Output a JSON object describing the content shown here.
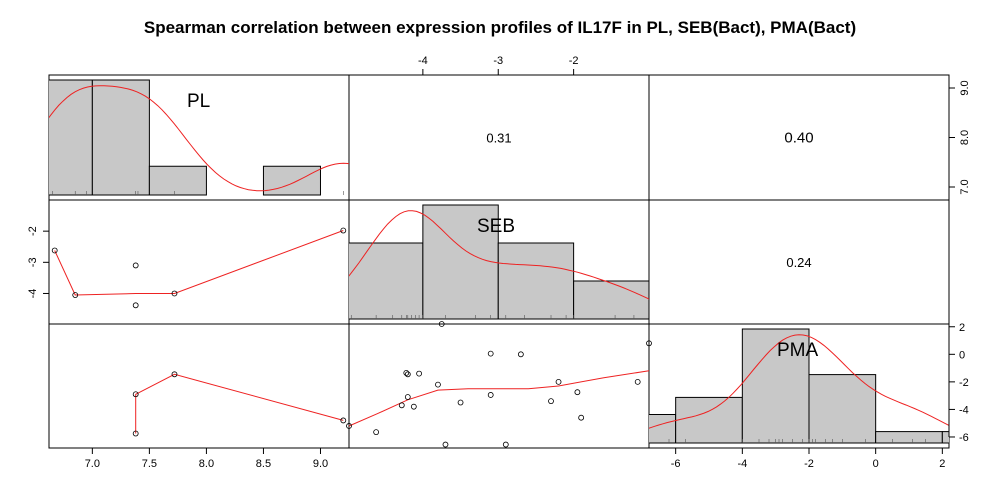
{
  "title": "Spearman correlation between expression profiles of IL17F in PL, SEB(Bact), PMA(Bact)",
  "chart_data": {
    "type": "scatter-matrix",
    "variables": [
      "PL",
      "SEB",
      "PMA"
    ],
    "axes": {
      "PL": {
        "range": [
          6.62,
          9.25
        ],
        "ticks": [
          7.0,
          7.5,
          8.0,
          8.5,
          9.0
        ],
        "tick_labels": [
          "7.0",
          "7.5",
          "8.0",
          "8.5",
          "9.0"
        ],
        "right_ticks": [
          7.0,
          8.0,
          9.0
        ],
        "right_tick_labels": [
          "7.0",
          "8.0",
          "9.0"
        ]
      },
      "SEB": {
        "range": [
          -4.98,
          -1.0
        ],
        "ticks": [
          -4,
          -3,
          -2
        ],
        "tick_labels": [
          "-4",
          "-3",
          "-2"
        ]
      },
      "PMA": {
        "range": [
          -6.8,
          2.2
        ],
        "ticks": [
          -6,
          -4,
          -2,
          0,
          2
        ],
        "tick_labels": [
          "-6",
          "-4",
          "-2",
          "0",
          "2"
        ]
      }
    },
    "histograms": {
      "PL": {
        "breaks": [
          6.5,
          7.0,
          7.5,
          8.0,
          8.5,
          9.0,
          9.5
        ],
        "counts": [
          2,
          2,
          0.5,
          0,
          0.5,
          0
        ],
        "rug": [
          6.65,
          6.85,
          6.95,
          7.38,
          7.4,
          7.72,
          9.2
        ]
      },
      "SEB": {
        "breaks": [
          -5,
          -4,
          -3,
          -2,
          -1
        ],
        "counts": [
          2.4,
          3.6,
          2.4,
          1.2
        ],
        "rug": [
          -4.95,
          -4.62,
          -4.4,
          -4.28,
          -4.22,
          -4.2,
          -4.15,
          -4.1,
          -4.05,
          -4.0,
          -3.7,
          -3.3,
          -3.1,
          -2.9,
          -2.65,
          -2.3,
          -2.1,
          -2.0,
          -1.45,
          -1.2
        ]
      },
      "PMA": {
        "breaks": [
          -8,
          -6,
          -4,
          -2,
          0,
          2,
          4
        ],
        "counts": [
          0.25,
          0.4,
          1.0,
          0.6,
          0.1,
          0.1
        ],
        "rug": [
          -6.2,
          -5.7,
          -4.0,
          -3.5,
          -3.2,
          -3.0,
          -2.9,
          -2.8,
          -2.5,
          -2.2,
          -2.0,
          -1.9,
          -1.8,
          -1.5,
          -1.3,
          -1.0,
          -0.3,
          0.5,
          1.1,
          1.5
        ]
      }
    },
    "correlations": [
      {
        "row": "PL",
        "col": "SEB",
        "value": "0.31"
      },
      {
        "row": "PL",
        "col": "PMA",
        "value": "0.40"
      },
      {
        "row": "SEB",
        "col": "PMA",
        "value": "0.24"
      }
    ],
    "scatter_PL_SEB": {
      "points": [
        [
          6.67,
          -2.62
        ],
        [
          6.85,
          -4.05
        ],
        [
          7.38,
          -3.1
        ],
        [
          7.38,
          -4.38
        ],
        [
          7.72,
          -4.0
        ],
        [
          9.2,
          -1.98
        ]
      ],
      "smooth": [
        [
          6.67,
          -2.62
        ],
        [
          6.85,
          -4.05
        ],
        [
          7.38,
          -4.0
        ],
        [
          7.72,
          -4.0
        ],
        [
          9.2,
          -1.98
        ]
      ]
    },
    "scatter_PL_PMA": {
      "points": [
        [
          7.38,
          -2.9
        ],
        [
          7.38,
          -5.75
        ],
        [
          7.72,
          -1.45
        ],
        [
          9.2,
          -4.8
        ]
      ],
      "smooth": [
        [
          7.38,
          -5.75
        ],
        [
          7.38,
          -2.9
        ],
        [
          7.72,
          -1.45
        ],
        [
          9.2,
          -4.8
        ]
      ]
    },
    "scatter_SEB_PMA": {
      "points": [
        [
          -4.98,
          -5.2
        ],
        [
          -4.62,
          -5.65
        ],
        [
          -4.28,
          -3.7
        ],
        [
          -4.22,
          -1.35
        ],
        [
          -4.2,
          -1.45
        ],
        [
          -4.2,
          -3.1
        ],
        [
          -4.12,
          -3.8
        ],
        [
          -4.05,
          -1.4
        ],
        [
          -3.75,
          2.2
        ],
        [
          -3.8,
          -2.2
        ],
        [
          -3.7,
          -6.55
        ],
        [
          -3.5,
          -3.5
        ],
        [
          -3.1,
          0.05
        ],
        [
          -3.1,
          -2.95
        ],
        [
          -2.9,
          -6.55
        ],
        [
          -2.7,
          0.0
        ],
        [
          -2.3,
          -3.4
        ],
        [
          -2.2,
          -2.0
        ],
        [
          -1.95,
          -2.75
        ],
        [
          -1.9,
          -4.6
        ],
        [
          -1.15,
          -2.0
        ],
        [
          -1.0,
          0.8
        ]
      ],
      "smooth": [
        [
          -4.98,
          -5.2
        ],
        [
          -4.6,
          -4.3
        ],
        [
          -4.2,
          -3.3
        ],
        [
          -3.8,
          -2.6
        ],
        [
          -3.4,
          -2.5
        ],
        [
          -3.0,
          -2.5
        ],
        [
          -2.6,
          -2.5
        ],
        [
          -2.2,
          -2.3
        ],
        [
          -1.6,
          -1.7
        ],
        [
          -1.0,
          -1.2
        ]
      ]
    },
    "colors": {
      "smooth": "#ee2222",
      "hist_fill": "#c8c8c8",
      "frame": "#000000"
    }
  }
}
